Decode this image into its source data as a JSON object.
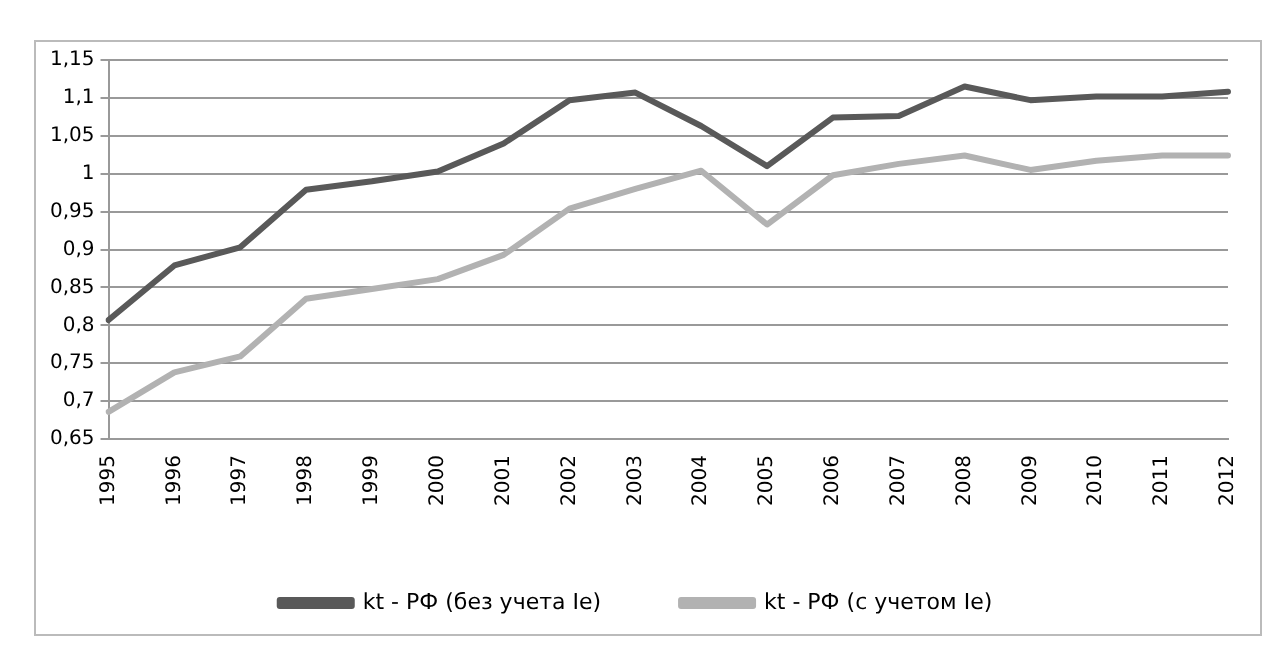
{
  "chart_data": {
    "type": "line",
    "categories": [
      "1995",
      "1996",
      "1997",
      "1998",
      "1999",
      "2000",
      "2001",
      "2002",
      "2003",
      "2004",
      "2005",
      "2006",
      "2007",
      "2008",
      "2009",
      "2010",
      "2011",
      "2012"
    ],
    "series": [
      {
        "name": "kt - РФ (без учета Ie)",
        "color": "#595959",
        "values": [
          0.807,
          0.879,
          0.903,
          0.979,
          0.99,
          1.003,
          1.04,
          1.097,
          1.107,
          1.063,
          1.01,
          1.074,
          1.076,
          1.115,
          1.097,
          1.102,
          1.102,
          1.108
        ]
      },
      {
        "name": "kt - РФ (с учетом Ie)",
        "color": "#b2b2b2",
        "values": [
          0.686,
          0.738,
          0.759,
          0.835,
          0.848,
          0.861,
          0.893,
          0.954,
          0.98,
          1.004,
          0.933,
          0.998,
          1.013,
          1.024,
          1.005,
          1.017,
          1.024,
          1.024
        ]
      }
    ],
    "ylim": [
      0.65,
      1.15
    ],
    "yticks": [
      {
        "value": 0.65,
        "label": "0,65"
      },
      {
        "value": 0.7,
        "label": "0,7"
      },
      {
        "value": 0.75,
        "label": "0,75"
      },
      {
        "value": 0.8,
        "label": "0,8"
      },
      {
        "value": 0.85,
        "label": "0,85"
      },
      {
        "value": 0.9,
        "label": "0,9"
      },
      {
        "value": 0.95,
        "label": "0,95"
      },
      {
        "value": 1,
        "label": "1"
      },
      {
        "value": 1.05,
        "label": "1,05"
      },
      {
        "value": 1.1,
        "label": "1,1"
      },
      {
        "value": 1.15,
        "label": "1,15"
      }
    ],
    "grid": "y",
    "legend": "bottom",
    "marker": "none"
  }
}
